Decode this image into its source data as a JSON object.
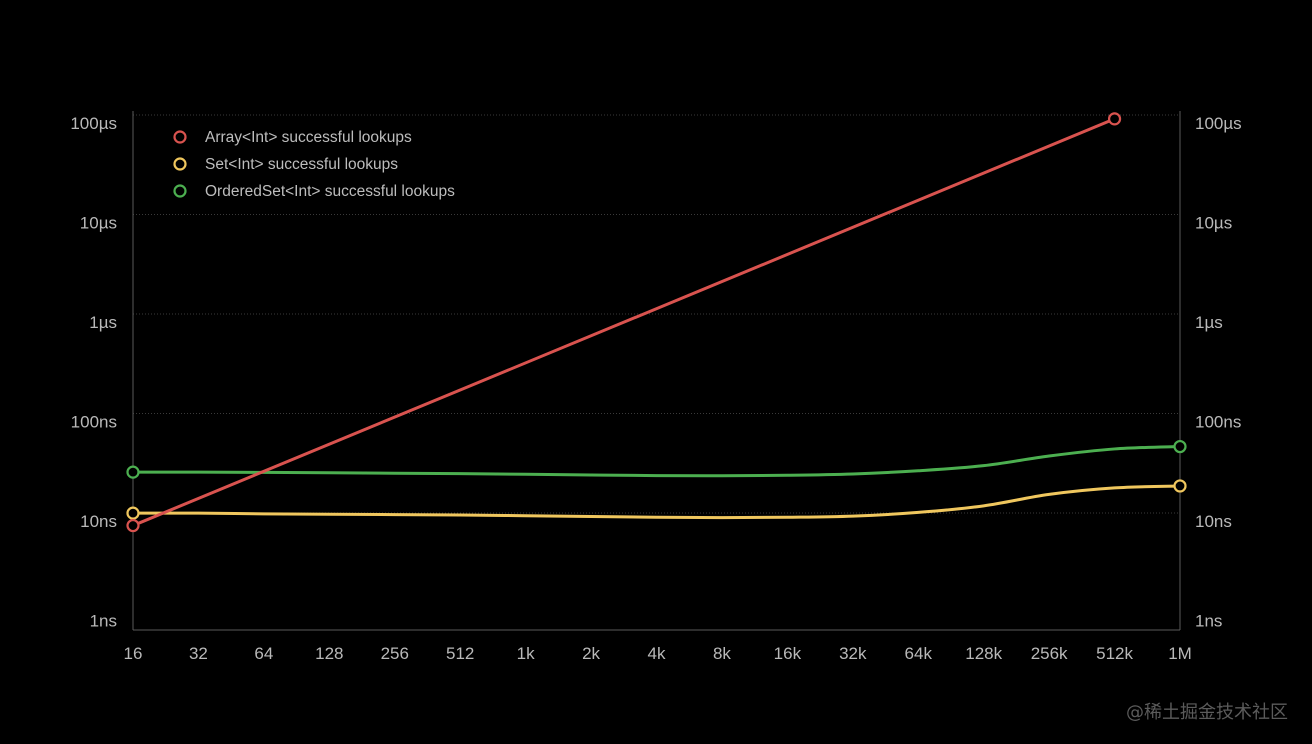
{
  "chart_data": {
    "type": "line",
    "title": "",
    "xlabel": "",
    "ylabel": "",
    "x_scale": "log2",
    "y_scale": "log10",
    "grid": true,
    "legend_position": "top-left",
    "x_tick_labels": [
      "16",
      "32",
      "64",
      "128",
      "256",
      "512",
      "1k",
      "2k",
      "4k",
      "8k",
      "16k",
      "32k",
      "64k",
      "128k",
      "256k",
      "512k",
      "1M"
    ],
    "y_tick_labels": [
      "1ns",
      "10ns",
      "100ns",
      "1µs",
      "10µs",
      "100µs"
    ],
    "x": [
      16,
      32,
      64,
      128,
      256,
      512,
      1024,
      2048,
      4096,
      8192,
      16384,
      32768,
      65536,
      131072,
      262144,
      524288,
      1048576
    ],
    "series": [
      {
        "name": "Array<Int> successful lookups",
        "color": "#d9534f",
        "x": [
          16,
          524288
        ],
        "values_ns": [
          9,
          110000
        ],
        "markers": "endpoints"
      },
      {
        "name": "Set<Int> successful lookups",
        "color": "#f0c75e",
        "x": [
          16,
          32,
          64,
          128,
          256,
          512,
          1024,
          2048,
          4096,
          8192,
          16384,
          32768,
          65536,
          131072,
          262144,
          524288,
          1048576
        ],
        "values_ns": [
          12,
          12,
          11.8,
          11.7,
          11.6,
          11.5,
          11.3,
          11.1,
          10.9,
          10.8,
          10.9,
          11.2,
          12.2,
          14.2,
          18.5,
          21.5,
          22.5
        ],
        "markers": "endpoints"
      },
      {
        "name": "OrderedSet<Int> successful lookups",
        "color": "#4caf50",
        "x": [
          16,
          32,
          64,
          128,
          256,
          512,
          1024,
          2048,
          4096,
          8192,
          16384,
          32768,
          65536,
          131072,
          262144,
          524288,
          1048576
        ],
        "values_ns": [
          31,
          31,
          30.8,
          30.5,
          30.2,
          29.9,
          29.5,
          29,
          28.6,
          28.5,
          28.8,
          29.7,
          32,
          36,
          45,
          53,
          56
        ],
        "markers": "endpoints"
      }
    ]
  },
  "watermark": "@稀土掘金技术社区"
}
